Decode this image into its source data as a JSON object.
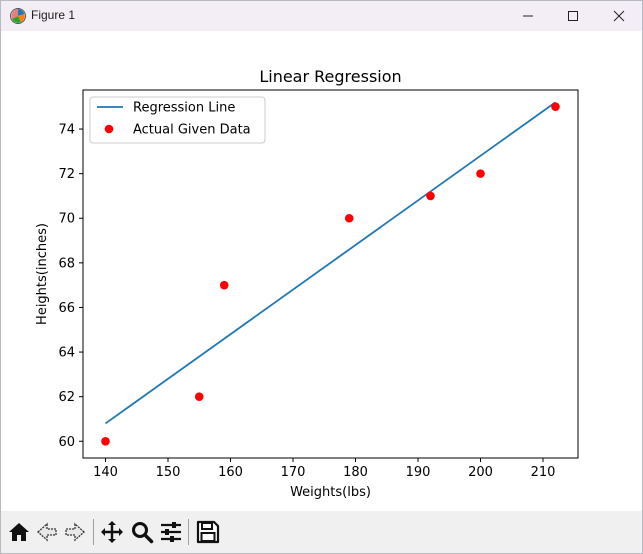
{
  "window": {
    "title": "Figure 1",
    "icons": {
      "app": "matplotlib-figure-icon",
      "minimize": "minimize-icon",
      "maximize": "maximize-icon",
      "close": "close-icon"
    }
  },
  "toolbar": {
    "buttons": [
      {
        "name": "home",
        "icon": "home-icon"
      },
      {
        "name": "back",
        "icon": "back-arrow-icon"
      },
      {
        "name": "forward",
        "icon": "forward-arrow-icon"
      },
      {
        "name": "pan",
        "icon": "move-icon"
      },
      {
        "name": "zoom",
        "icon": "magnifier-icon"
      },
      {
        "name": "configure-subplots",
        "icon": "sliders-icon"
      },
      {
        "name": "save",
        "icon": "floppy-disk-icon"
      }
    ]
  },
  "chart_data": {
    "type": "scatter",
    "title": "Linear Regression",
    "xlabel": "Weights(lbs)",
    "ylabel": "Heights(inches)",
    "xlim": [
      136.4,
      215.6
    ],
    "ylim": [
      59.25,
      75.75
    ],
    "xticks": [
      140,
      150,
      160,
      170,
      180,
      190,
      200,
      210
    ],
    "yticks": [
      60,
      62,
      64,
      66,
      68,
      70,
      72,
      74
    ],
    "grid": false,
    "legend_position": "upper left",
    "series": [
      {
        "name": "Regression Line",
        "kind": "line",
        "color": "#1f77b4",
        "x": [
          140,
          212
        ],
        "y": [
          60.8,
          75.2
        ]
      },
      {
        "name": "Actual Given Data",
        "kind": "scatter",
        "color": "#ff0000",
        "x": [
          140,
          155,
          159,
          179,
          192,
          200,
          212
        ],
        "y": [
          60,
          62,
          67,
          70,
          71,
          72,
          75
        ]
      }
    ]
  }
}
